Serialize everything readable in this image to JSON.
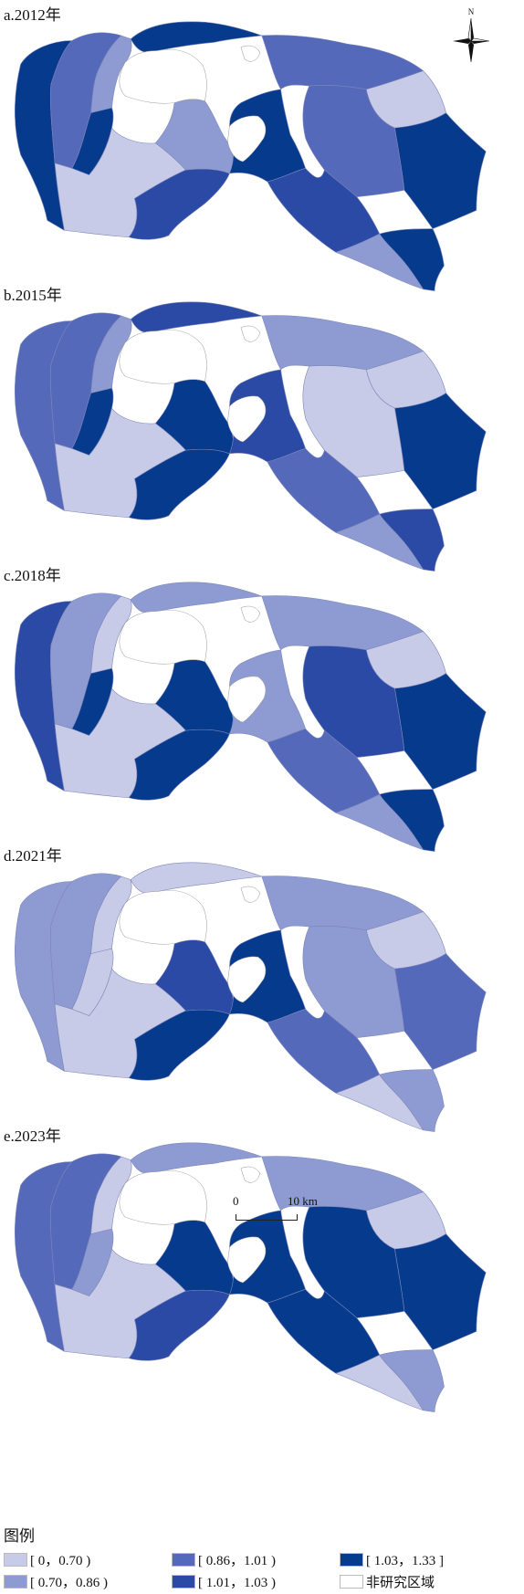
{
  "colors": {
    "c1": "#c8cbe8",
    "c2": "#8e9bd3",
    "c3": "#5569bb",
    "c4": "#2a4aa5",
    "c5": "#063a8c",
    "c6": "#ffffff",
    "boundary": "#7d86b8"
  },
  "panels": [
    {
      "label": "a.2012年",
      "regions": {
        "west_coast": "c5",
        "northwest": "c3",
        "north_strip": "c2",
        "north_central": "c5",
        "west_inner": "c5",
        "southwest": "c1",
        "south_central": "c4",
        "central": "c2",
        "central_east": "c5",
        "northeast": "c3",
        "east_north": "c1",
        "east": "c5",
        "east_central": "c3",
        "southeast_mid": "c4",
        "south_tip": "c5",
        "east_coast": "c2"
      }
    },
    {
      "label": "b.2015年",
      "regions": {
        "west_coast": "c3",
        "northwest": "c3",
        "north_strip": "c2",
        "north_central": "c4",
        "west_inner": "c5",
        "southwest": "c1",
        "south_central": "c5",
        "central": "c5",
        "central_east": "c4",
        "northeast": "c2",
        "east_north": "c1",
        "east": "c5",
        "east_central": "c1",
        "southeast_mid": "c3",
        "south_tip": "c4",
        "east_coast": "c2"
      }
    },
    {
      "label": "c.2018年",
      "regions": {
        "west_coast": "c4",
        "northwest": "c2",
        "north_strip": "c1",
        "north_central": "c2",
        "west_inner": "c5",
        "southwest": "c1",
        "south_central": "c5",
        "central": "c5",
        "central_east": "c2",
        "northeast": "c2",
        "east_north": "c1",
        "east": "c5",
        "east_central": "c4",
        "southeast_mid": "c3",
        "south_tip": "c5",
        "east_coast": "c2"
      }
    },
    {
      "label": "d.2021年",
      "regions": {
        "west_coast": "c2",
        "northwest": "c2",
        "north_strip": "c1",
        "north_central": "c1",
        "west_inner": "c1",
        "southwest": "c1",
        "south_central": "c5",
        "central": "c4",
        "central_east": "c5",
        "northeast": "c2",
        "east_north": "c1",
        "east": "c3",
        "east_central": "c2",
        "southeast_mid": "c3",
        "south_tip": "c2",
        "east_coast": "c1"
      }
    },
    {
      "label": "e.2023年",
      "regions": {
        "west_coast": "c3",
        "northwest": "c3",
        "north_strip": "c1",
        "north_central": "c2",
        "west_inner": "c2",
        "southwest": "c1",
        "south_central": "c4",
        "central": "c5",
        "central_east": "c5",
        "northeast": "c2",
        "east_north": "c1",
        "east": "c5",
        "east_central": "c5",
        "southeast_mid": "c5",
        "south_tip": "c2",
        "east_coast": "c1"
      }
    }
  ],
  "compass": {
    "north_label": "N"
  },
  "scale": {
    "zero_label": "0",
    "end_label": "10 km"
  },
  "legend": {
    "title": "图例",
    "items": [
      {
        "label": "[ 0，0.70 )",
        "color_key": "c1"
      },
      {
        "label": "[ 0.70，0.86 )",
        "color_key": "c2"
      },
      {
        "label": "[ 0.86，1.01 )",
        "color_key": "c3"
      },
      {
        "label": "[ 1.01，1.03 )",
        "color_key": "c4"
      },
      {
        "label": "[ 1.03，1.33 ]",
        "color_key": "c5"
      },
      {
        "label": "非研究区域",
        "color_key": "c6"
      }
    ]
  }
}
